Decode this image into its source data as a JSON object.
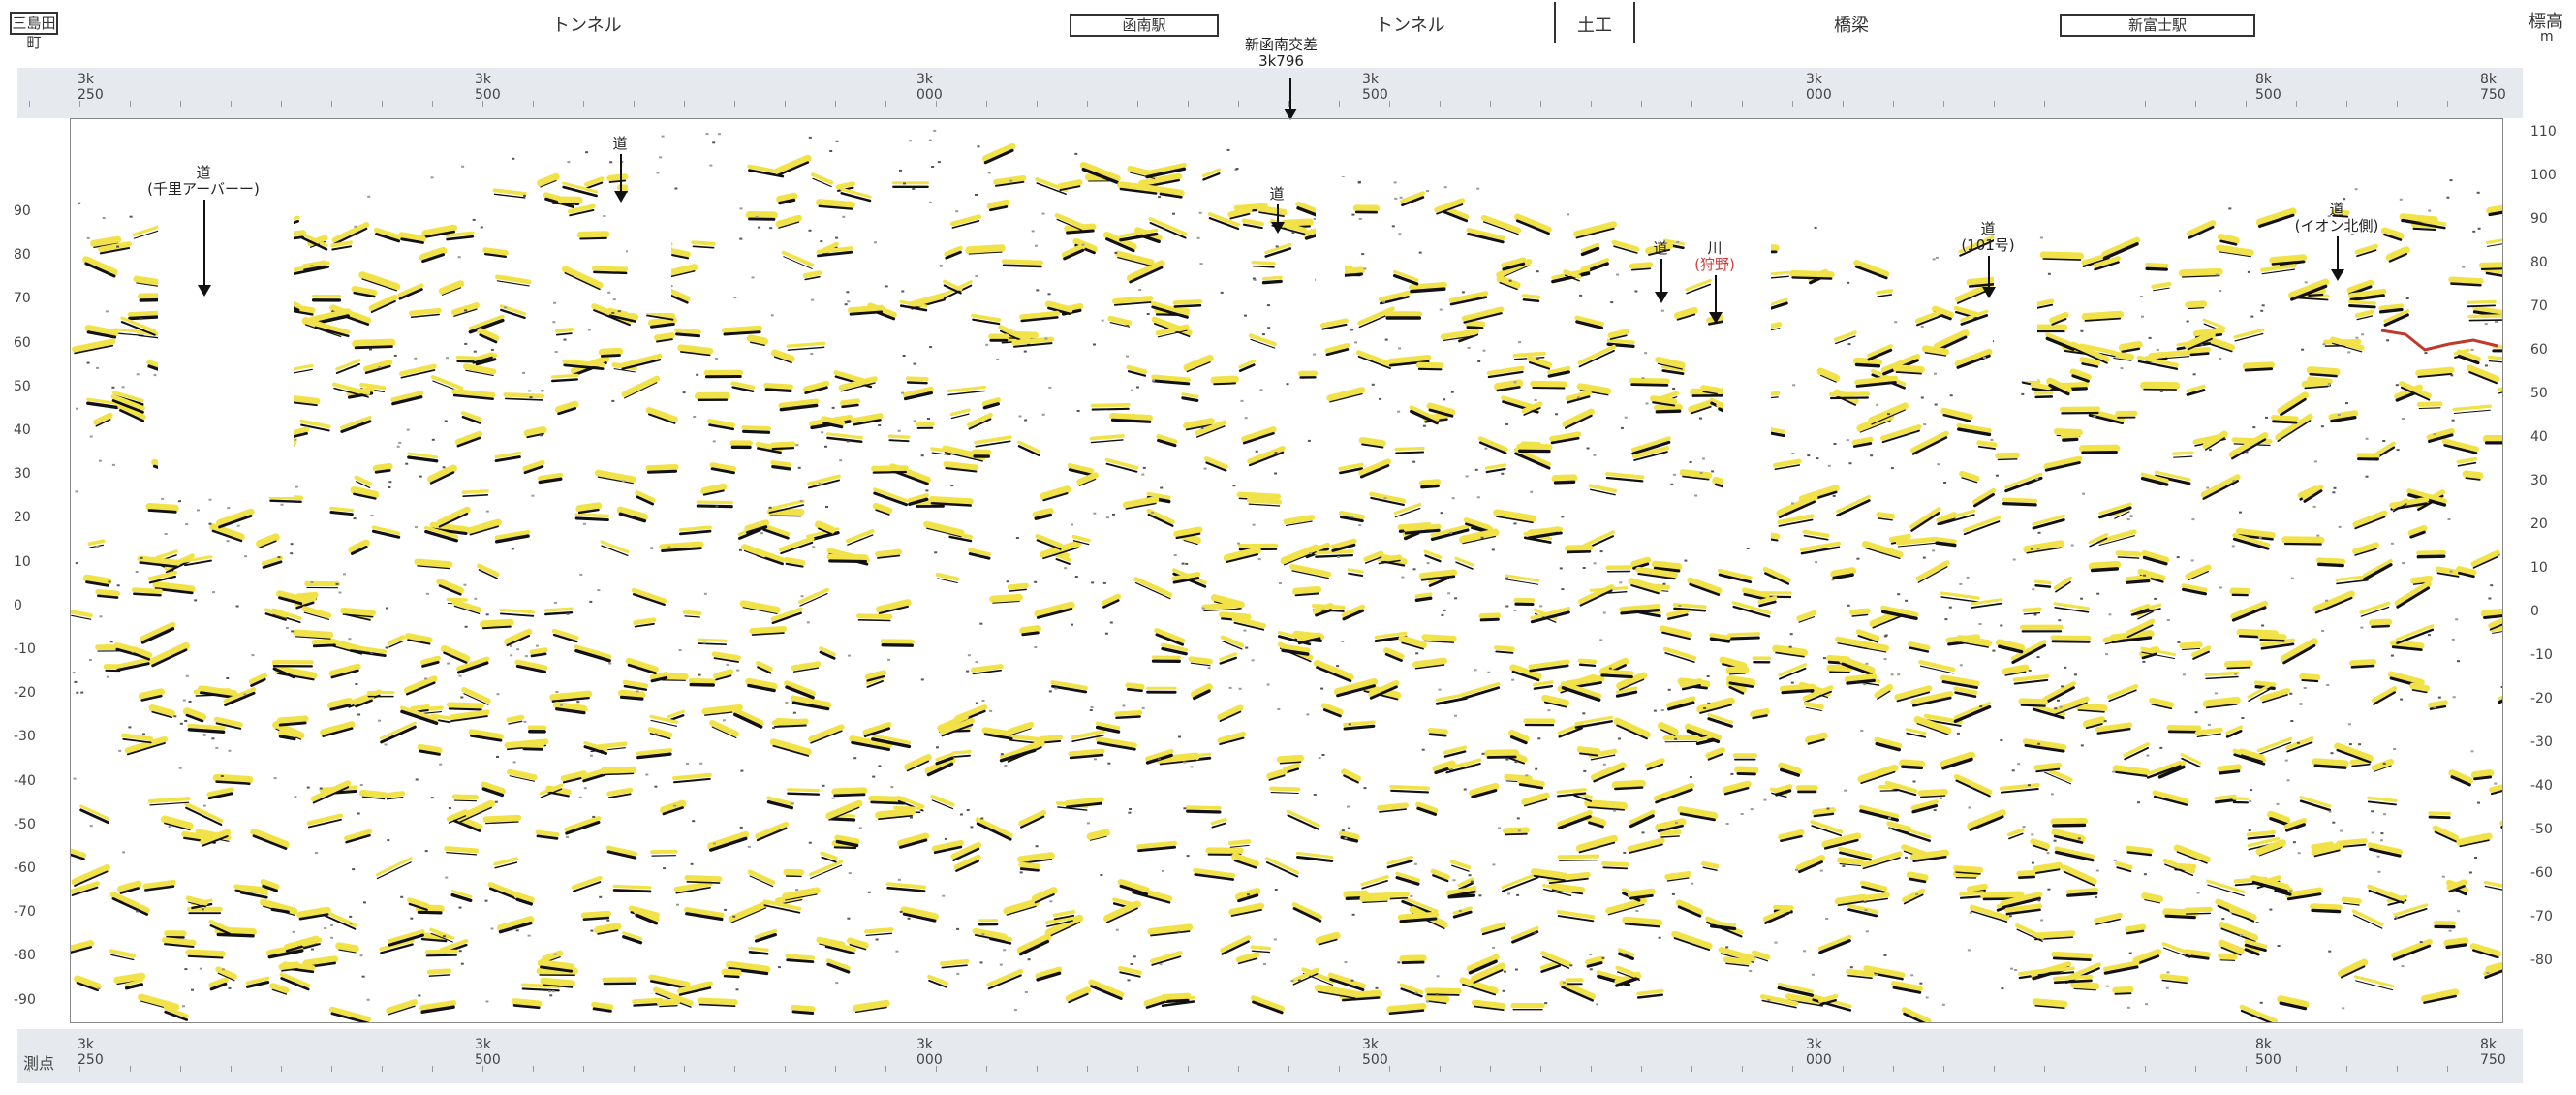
{
  "header": {
    "left_box": "三島田町",
    "item1": "トンネル",
    "item2_box": "函南駅",
    "item3": "トンネル",
    "item4": "土工",
    "item5": "橋梁",
    "item6_box": "新富士駅",
    "right_label": "標高",
    "right_unit": "m"
  },
  "stations": [
    {
      "k": "3k",
      "m": "250"
    },
    {
      "k": "3k",
      "m": "500"
    },
    {
      "k": "3k",
      "m": "000"
    },
    {
      "k": "3k",
      "m": "500"
    },
    {
      "k": "3k",
      "m": "000"
    },
    {
      "k": "8k",
      "m": "500"
    },
    {
      "k": "8k",
      "m": "750"
    }
  ],
  "bottom_left_label": "測点",
  "left_axis": [
    "90",
    "80",
    "70",
    "60",
    "50",
    "40",
    "30",
    "20",
    "10",
    "0",
    "-10",
    "-20",
    "-30",
    "-40",
    "-50",
    "-60",
    "-70",
    "-80",
    "-90"
  ],
  "right_axis": [
    "110",
    "100",
    "90",
    "80",
    "70",
    "60",
    "50",
    "40",
    "30",
    "20",
    "10",
    "0",
    "-10",
    "-20",
    "-30",
    "-40",
    "-50",
    "-60",
    "-70",
    "-80"
  ],
  "top_marker": {
    "line1": "新函南交差",
    "line2": "3k796"
  },
  "annotations": [
    {
      "line1": "道",
      "line2": "(千里アーバーー)",
      "red": false
    },
    {
      "line1": "道",
      "line2": "",
      "red": false
    },
    {
      "line1": "道",
      "line2": "",
      "red": false
    },
    {
      "line1": "道",
      "line2": "",
      "red": false
    },
    {
      "line1": "川",
      "line2": "(狩野)",
      "red": true
    },
    {
      "line1": "道",
      "line2": "(101号)",
      "red": false
    },
    {
      "line1": "道",
      "line2": "(イオン北側)",
      "red": false
    }
  ],
  "colors": {
    "yellow": "#f2e24a",
    "black": "#111111",
    "ruler": "#e6e9ee",
    "horizon": "#c0392b"
  }
}
